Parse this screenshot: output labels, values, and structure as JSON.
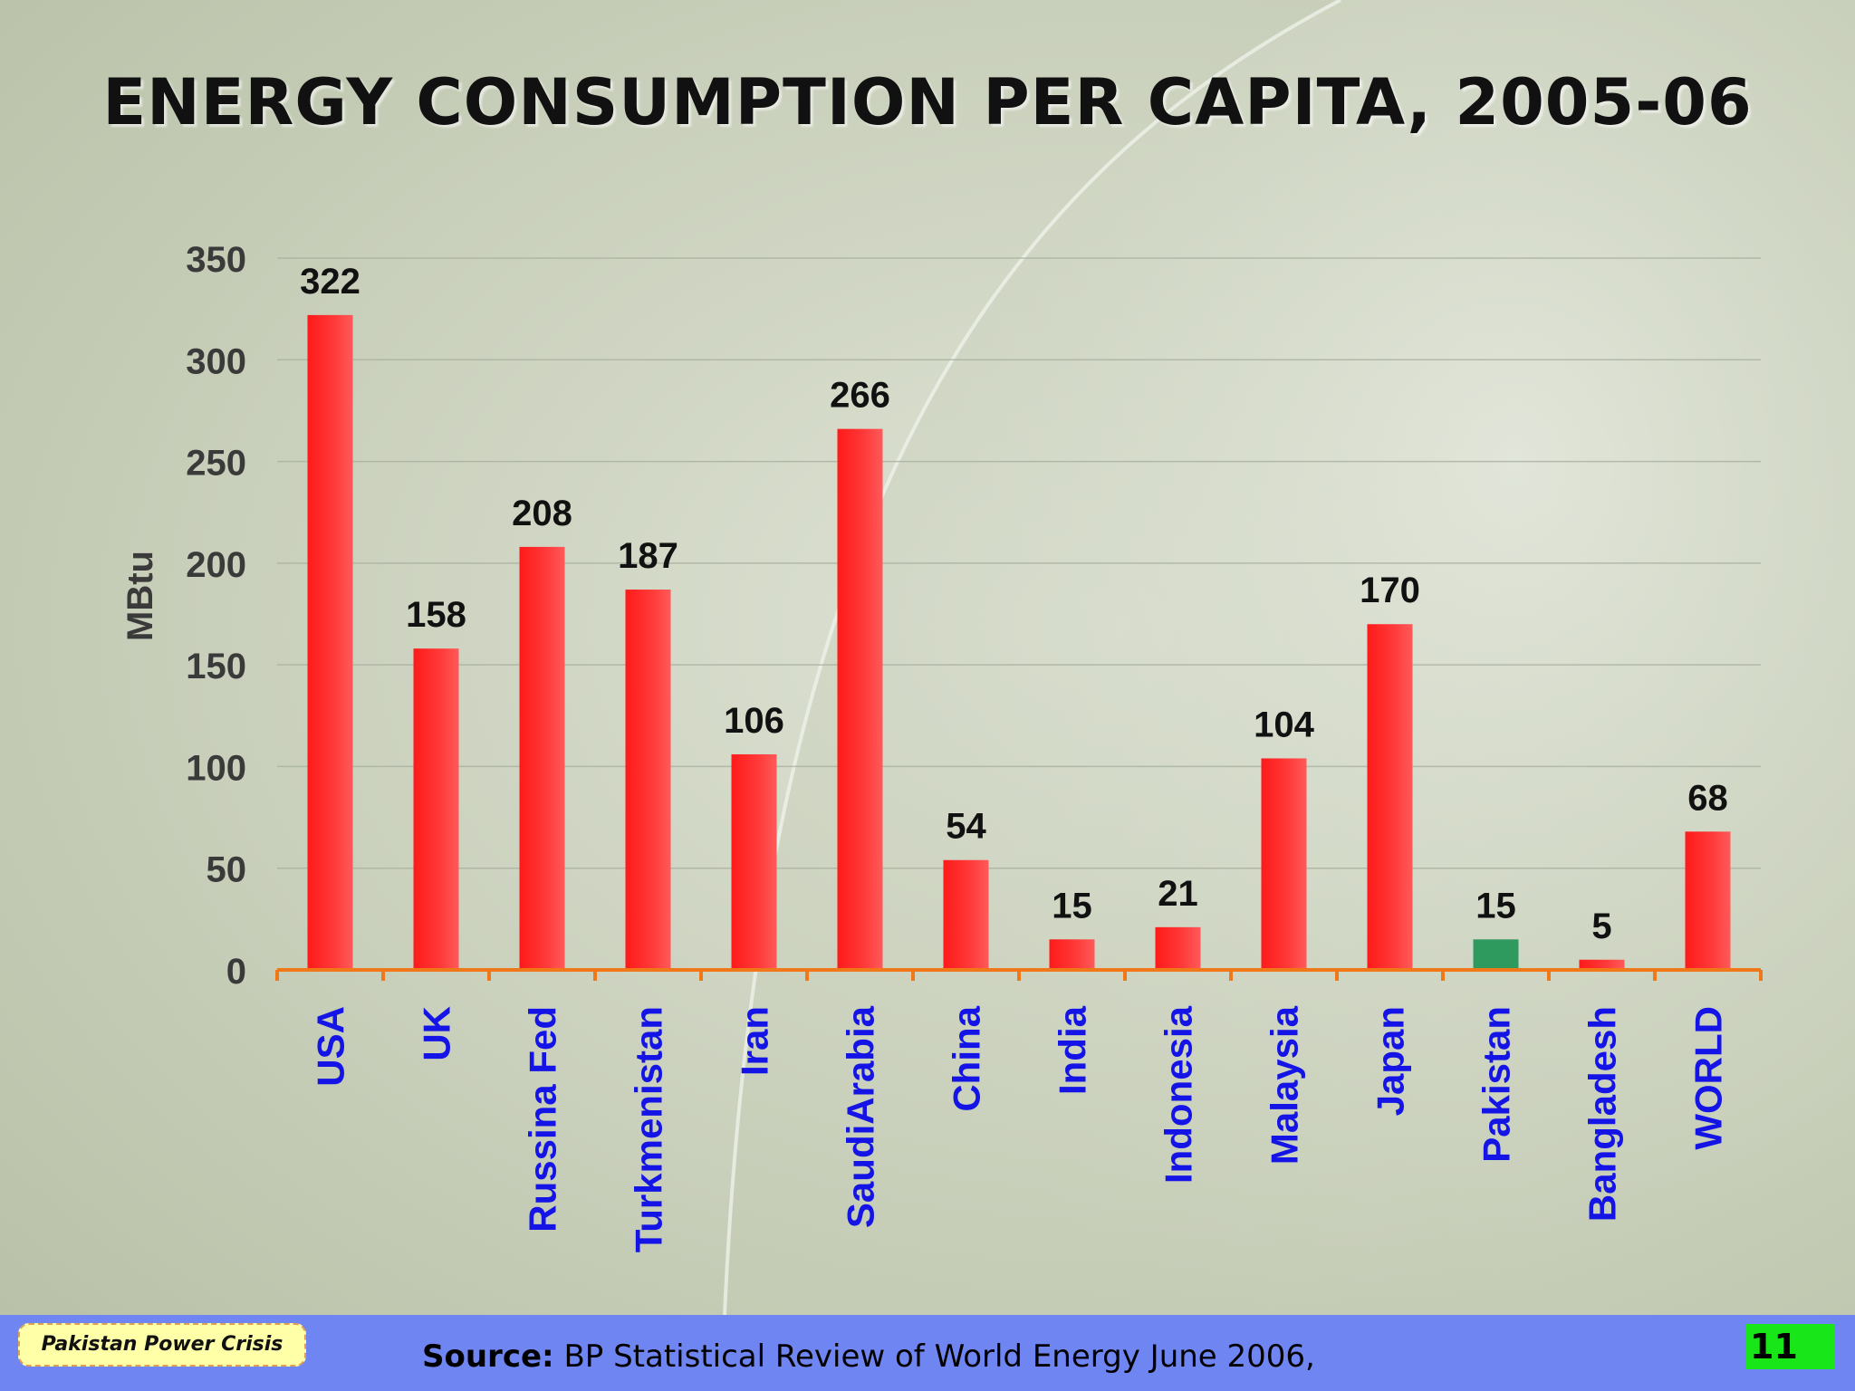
{
  "slide": {
    "title": "ENERGY CONSUMPTION PER CAPITA, 2005-06",
    "footer": {
      "tag": "Pakistan Power Crisis",
      "source_label": "Source:",
      "source_text": " BP Statistical Review of World Energy June 2006,",
      "page_number": "11"
    }
  },
  "chart_data": {
    "type": "bar",
    "title": "ENERGY CONSUMPTION PER CAPITA, 2005-06",
    "xlabel": "",
    "ylabel": "MBtu",
    "ylim": [
      0,
      350
    ],
    "yticks": [
      0,
      50,
      100,
      150,
      200,
      250,
      300,
      350
    ],
    "grid": true,
    "categories": [
      "USA",
      "UK",
      "Russina Fed",
      "Turkmenistan",
      "Iran",
      "SaudiArabia",
      "China",
      "India",
      "Indonesia",
      "Malaysia",
      "Japan",
      "Pakistan",
      "Bangladesh",
      "WORLD"
    ],
    "values": [
      322,
      158,
      208,
      187,
      106,
      266,
      54,
      15,
      21,
      104,
      170,
      15,
      5,
      68
    ],
    "highlight_category": "Pakistan",
    "colors": {
      "bar": "#ff2020",
      "highlight_bar": "#2e9a5e",
      "category_label": "#1414e6",
      "axis_line": "#f07818",
      "tick_label": "#3a3a3a",
      "value_label": "#111111"
    }
  }
}
